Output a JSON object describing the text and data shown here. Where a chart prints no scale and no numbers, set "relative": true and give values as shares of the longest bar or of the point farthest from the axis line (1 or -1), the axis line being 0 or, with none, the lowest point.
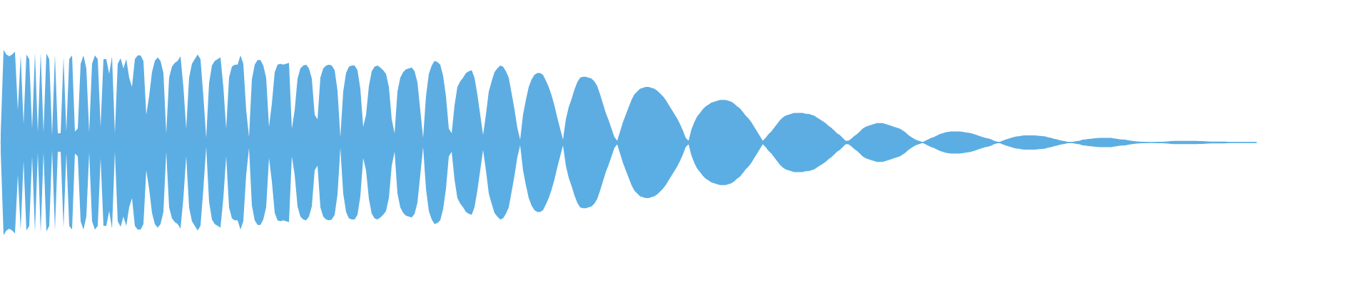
{
  "chart_data": {
    "type": "area",
    "relative": true,
    "tick_labels": false,
    "ref_lines": [
      {
        "axis": "y",
        "value": 0,
        "color": "#5dade2"
      }
    ],
    "categories": [
      null,
      null,
      null,
      null,
      null,
      null,
      null,
      null,
      null,
      null,
      null,
      null,
      null,
      null,
      null,
      null,
      null,
      null,
      null,
      null,
      null,
      null,
      null,
      null,
      null,
      null,
      null,
      null,
      null,
      null,
      null,
      null,
      null,
      null,
      null,
      null,
      null,
      null,
      null,
      null,
      null,
      null,
      null,
      null,
      null,
      null,
      null,
      null,
      null,
      null,
      null,
      null,
      null,
      null,
      null,
      null,
      null,
      null,
      null,
      null,
      null,
      null,
      null,
      null,
      null,
      null,
      null,
      null,
      null,
      null,
      null,
      null,
      null,
      null,
      null,
      null,
      null,
      null,
      null,
      null,
      null,
      null,
      null,
      null,
      null,
      null,
      null,
      null,
      null,
      null,
      null,
      null,
      null,
      null,
      null,
      null,
      null,
      null,
      null,
      null,
      null,
      null,
      null,
      null,
      null,
      null,
      null,
      null,
      null,
      null,
      null,
      null,
      null,
      null,
      null,
      null,
      null,
      null,
      null,
      null,
      null,
      null,
      null,
      null,
      null,
      null,
      null,
      null,
      null,
      null,
      null,
      null,
      null,
      null,
      null,
      null,
      null,
      null,
      null,
      null,
      null,
      null,
      null,
      null,
      null,
      null,
      null,
      null,
      null,
      null,
      null,
      null,
      null,
      null,
      null,
      null,
      null,
      null,
      null,
      null,
      null,
      null,
      null,
      null,
      null,
      null,
      null,
      null,
      null,
      null,
      null,
      null,
      null,
      null,
      null,
      null,
      null,
      null,
      null,
      null,
      null,
      null,
      null,
      null,
      null,
      null,
      null,
      null,
      null,
      null,
      null,
      null,
      null,
      null,
      null,
      null,
      null,
      null,
      null,
      null,
      null,
      null,
      null,
      null,
      null,
      null,
      null,
      null,
      null,
      null,
      null,
      null,
      null,
      null,
      null,
      null,
      null,
      null,
      null,
      null,
      null,
      null,
      null,
      null,
      null,
      null,
      null,
      null,
      null,
      null,
      null,
      null,
      null,
      null,
      null,
      null,
      null,
      null,
      null,
      null,
      null,
      null,
      null,
      null,
      null,
      null,
      null,
      null,
      null,
      null,
      null,
      null,
      null,
      null,
      null,
      null,
      null,
      null,
      null,
      null,
      null,
      null,
      null,
      null,
      null,
      null,
      null,
      null,
      null,
      null,
      null,
      null,
      null,
      null,
      null,
      null,
      null,
      null,
      null,
      null,
      null,
      null,
      null,
      null,
      null,
      null,
      null,
      null,
      null,
      null,
      null,
      null,
      null,
      null,
      null,
      null,
      null,
      null,
      null,
      null,
      null,
      null,
      null,
      null,
      null,
      null,
      null,
      null,
      null,
      null,
      null,
      null,
      null,
      null,
      null,
      null,
      null,
      null,
      null,
      null,
      null,
      null,
      null,
      null,
      null,
      null,
      null,
      null,
      null,
      null,
      null,
      null,
      null,
      null,
      null,
      null,
      null,
      null,
      null,
      null,
      null,
      null,
      null,
      null,
      null,
      null,
      null,
      null,
      null,
      null,
      null,
      null,
      null,
      null,
      null,
      null,
      null,
      null,
      null,
      null,
      null,
      null,
      null,
      null,
      null,
      null,
      null,
      null,
      null,
      null,
      null,
      null,
      null,
      null,
      null,
      null,
      null,
      null,
      null,
      null,
      null,
      null,
      null,
      null,
      null,
      null,
      null,
      null,
      null,
      null,
      null,
      null,
      null,
      null,
      null,
      null,
      null,
      null,
      null,
      null,
      null,
      null,
      null,
      null,
      null,
      null,
      null,
      null,
      null,
      null,
      null,
      null,
      null,
      null,
      null,
      null,
      null,
      null,
      null,
      null,
      null,
      null,
      null,
      null,
      null,
      null,
      null,
      null,
      null,
      null,
      null,
      null,
      null,
      null,
      null,
      null,
      null,
      null,
      null,
      null,
      null
    ],
    "series": [
      {
        "color": "#5dade2",
        "values": [
          0.1,
          1.0,
          0.95,
          0.93,
          0.95,
          0.98,
          0.35,
          0.94,
          0.2,
          0.95,
          0.9,
          0.15,
          0.97,
          0.11,
          0.97,
          0.11,
          0.96,
          0.9,
          0.08,
          0.95,
          0.1,
          0.1,
          0.92,
          0.12,
          0.9,
          0.94,
          0.12,
          0.15,
          0.85,
          0.94,
          0.8,
          0.11,
          0.85,
          0.94,
          0.9,
          0.17,
          0.9,
          0.9,
          0.74,
          0.93,
          0.1,
          0.85,
          0.91,
          0.8,
          0.9,
          0.7,
          0.6,
          0.9,
          0.94,
          0.94,
          0.88,
          0.3,
          0.5,
          0.76,
          0.88,
          0.92,
          0.88,
          0.75,
          0.1,
          0.7,
          0.82,
          0.86,
          0.88,
          0.93,
          0.6,
          0.15,
          0.7,
          0.85,
          0.9,
          0.95,
          0.9,
          0.5,
          0.05,
          0.64,
          0.83,
          0.88,
          0.9,
          0.92,
          0.6,
          0.15,
          0.7,
          0.82,
          0.84,
          0.84,
          0.94,
          0.85,
          0.35,
          0.06,
          0.68,
          0.84,
          0.89,
          0.89,
          0.83,
          0.7,
          0.17,
          0.42,
          0.76,
          0.84,
          0.85,
          0.84,
          0.85,
          0.86,
          0.15,
          0.35,
          0.69,
          0.8,
          0.83,
          0.84,
          0.8,
          0.69,
          0.3,
          0.25,
          0.7,
          0.8,
          0.83,
          0.84,
          0.83,
          0.78,
          0.56,
          0.06,
          0.55,
          0.75,
          0.82,
          0.83,
          0.83,
          0.78,
          0.58,
          0.17,
          0.3,
          0.61,
          0.77,
          0.82,
          0.83,
          0.81,
          0.78,
          0.74,
          0.6,
          0.25,
          0.1,
          0.55,
          0.7,
          0.76,
          0.79,
          0.8,
          0.81,
          0.77,
          0.65,
          0.35,
          0.05,
          0.5,
          0.74,
          0.83,
          0.88,
          0.87,
          0.84,
          0.72,
          0.5,
          0.15,
          0.1,
          0.4,
          0.6,
          0.66,
          0.7,
          0.75,
          0.77,
          0.78,
          0.7,
          0.52,
          0.3,
          0.08,
          0.3,
          0.55,
          0.66,
          0.76,
          0.8,
          0.83,
          0.82,
          0.77,
          0.7,
          0.53,
          0.36,
          0.16,
          0.03,
          0.3,
          0.46,
          0.6,
          0.68,
          0.73,
          0.75,
          0.75,
          0.73,
          0.67,
          0.6,
          0.51,
          0.4,
          0.27,
          0.15,
          0.03,
          0.25,
          0.38,
          0.47,
          0.57,
          0.65,
          0.7,
          0.71,
          0.71,
          0.7,
          0.69,
          0.66,
          0.61,
          0.52,
          0.42,
          0.32,
          0.24,
          0.15,
          0.06,
          0.02,
          0.12,
          0.22,
          0.3,
          0.38,
          0.46,
          0.52,
          0.55,
          0.58,
          0.59,
          0.6,
          0.6,
          0.59,
          0.58,
          0.56,
          0.53,
          0.5,
          0.46,
          0.41,
          0.36,
          0.31,
          0.26,
          0.2,
          0.13,
          0.05,
          0.02,
          0.14,
          0.22,
          0.28,
          0.32,
          0.36,
          0.39,
          0.41,
          0.43,
          0.44,
          0.45,
          0.46,
          0.46,
          0.46,
          0.45,
          0.44,
          0.42,
          0.39,
          0.37,
          0.33,
          0.29,
          0.26,
          0.22,
          0.17,
          0.12,
          0.07,
          0.02,
          0.05,
          0.09,
          0.12,
          0.16,
          0.2,
          0.24,
          0.27,
          0.29,
          0.3,
          0.31,
          0.32,
          0.32,
          0.32,
          0.32,
          0.31,
          0.31,
          0.3,
          0.29,
          0.27,
          0.25,
          0.23,
          0.21,
          0.18,
          0.16,
          0.13,
          0.1,
          0.08,
          0.05,
          0.02,
          0.02,
          0.04,
          0.07,
          0.09,
          0.12,
          0.15,
          0.17,
          0.18,
          0.19,
          0.2,
          0.21,
          0.21,
          0.21,
          0.2,
          0.19,
          0.18,
          0.17,
          0.16,
          0.15,
          0.13,
          0.11,
          0.08,
          0.06,
          0.04,
          0.025,
          0.015,
          0.004,
          0.02,
          0.035,
          0.05,
          0.06,
          0.075,
          0.09,
          0.1,
          0.11,
          0.115,
          0.12,
          0.12,
          0.12,
          0.12,
          0.115,
          0.11,
          0.105,
          0.1,
          0.09,
          0.08,
          0.07,
          0.06,
          0.05,
          0.045,
          0.035,
          0.02,
          0.01,
          0.005,
          0.02,
          0.03,
          0.04,
          0.05,
          0.06,
          0.065,
          0.07,
          0.075,
          0.077,
          0.077,
          0.077,
          0.077,
          0.075,
          0.072,
          0.07,
          0.065,
          0.055,
          0.05,
          0.04,
          0.035,
          0.025,
          0.02,
          0.013,
          0.005,
          0.004,
          0.01,
          0.015,
          0.02,
          0.03,
          0.033,
          0.038,
          0.04,
          0.045,
          0.048,
          0.05,
          0.05,
          0.05,
          0.05,
          0.05,
          0.045,
          0.04,
          0.035,
          0.033,
          0.03,
          0.025,
          0.02,
          0.015,
          0.012,
          0.01,
          0.007,
          0.005,
          0.004,
          0,
          0.004,
          0.005,
          0.007,
          0.008,
          0.01,
          0.012,
          0.015,
          0.018,
          0.018,
          0.018,
          0.018,
          0.018,
          0.018,
          0.018,
          0.018,
          0.018,
          0.016,
          0.015,
          0.013,
          0.012,
          0.01,
          0.01,
          0.01,
          0.01,
          0.01,
          0.01,
          0.005,
          0.004,
          0.004,
          0.004,
          0.004,
          0.004,
          0.004,
          0.004,
          0.004,
          0.004,
          0.004
        ]
      },
      {
        "color": "#5baee3",
        "values": [
          -0.1,
          -1.0,
          -0.95,
          -0.93,
          -0.95,
          -0.98,
          -0.35,
          -0.94,
          -0.2,
          -0.95,
          -0.9,
          -0.15,
          -0.97,
          -0.11,
          -0.97,
          -0.11,
          -0.96,
          -0.9,
          -0.08,
          -0.95,
          -0.1,
          -0.1,
          -0.92,
          -0.12,
          -0.9,
          -0.94,
          -0.12,
          -0.15,
          -0.85,
          -0.94,
          -0.8,
          -0.11,
          -0.85,
          -0.94,
          -0.9,
          -0.17,
          -0.9,
          -0.9,
          -0.74,
          -0.93,
          -0.1,
          -0.85,
          -0.91,
          -0.8,
          -0.9,
          -0.7,
          -0.6,
          -0.9,
          -0.94,
          -0.94,
          -0.88,
          -0.3,
          -0.5,
          -0.76,
          -0.88,
          -0.92,
          -0.88,
          -0.75,
          -0.1,
          -0.7,
          -0.82,
          -0.86,
          -0.88,
          -0.93,
          -0.6,
          -0.15,
          -0.7,
          -0.85,
          -0.9,
          -0.95,
          -0.9,
          -0.5,
          -0.05,
          -0.64,
          -0.83,
          -0.88,
          -0.9,
          -0.92,
          -0.6,
          -0.15,
          -0.7,
          -0.82,
          -0.84,
          -0.84,
          -0.94,
          -0.85,
          -0.35,
          -0.06,
          -0.68,
          -0.84,
          -0.89,
          -0.89,
          -0.83,
          -0.7,
          -0.17,
          -0.42,
          -0.76,
          -0.84,
          -0.85,
          -0.84,
          -0.85,
          -0.86,
          -0.15,
          -0.35,
          -0.69,
          -0.8,
          -0.83,
          -0.84,
          -0.8,
          -0.69,
          -0.3,
          -0.25,
          -0.7,
          -0.8,
          -0.83,
          -0.84,
          -0.83,
          -0.78,
          -0.56,
          -0.06,
          -0.55,
          -0.75,
          -0.82,
          -0.83,
          -0.83,
          -0.78,
          -0.58,
          -0.17,
          -0.3,
          -0.61,
          -0.77,
          -0.82,
          -0.83,
          -0.81,
          -0.78,
          -0.74,
          -0.6,
          -0.25,
          -0.1,
          -0.55,
          -0.7,
          -0.76,
          -0.79,
          -0.8,
          -0.81,
          -0.77,
          -0.65,
          -0.35,
          -0.05,
          -0.5,
          -0.74,
          -0.83,
          -0.88,
          -0.87,
          -0.84,
          -0.72,
          -0.5,
          -0.15,
          -0.1,
          -0.4,
          -0.6,
          -0.66,
          -0.7,
          -0.75,
          -0.77,
          -0.78,
          -0.7,
          -0.52,
          -0.3,
          -0.08,
          -0.3,
          -0.55,
          -0.66,
          -0.76,
          -0.8,
          -0.83,
          -0.82,
          -0.77,
          -0.7,
          -0.53,
          -0.36,
          -0.16,
          -0.03,
          -0.3,
          -0.46,
          -0.6,
          -0.68,
          -0.73,
          -0.75,
          -0.75,
          -0.73,
          -0.67,
          -0.6,
          -0.51,
          -0.4,
          -0.27,
          -0.15,
          -0.03,
          -0.25,
          -0.38,
          -0.47,
          -0.57,
          -0.65,
          -0.7,
          -0.71,
          -0.71,
          -0.7,
          -0.69,
          -0.66,
          -0.61,
          -0.52,
          -0.42,
          -0.32,
          -0.24,
          -0.15,
          -0.06,
          -0.02,
          -0.12,
          -0.22,
          -0.3,
          -0.38,
          -0.46,
          -0.52,
          -0.55,
          -0.58,
          -0.59,
          -0.6,
          -0.6,
          -0.59,
          -0.58,
          -0.56,
          -0.53,
          -0.5,
          -0.46,
          -0.41,
          -0.36,
          -0.31,
          -0.26,
          -0.2,
          -0.13,
          -0.05,
          -0.02,
          -0.14,
          -0.22,
          -0.28,
          -0.32,
          -0.36,
          -0.39,
          -0.41,
          -0.43,
          -0.44,
          -0.45,
          -0.46,
          -0.46,
          -0.46,
          -0.45,
          -0.44,
          -0.42,
          -0.39,
          -0.37,
          -0.33,
          -0.29,
          -0.26,
          -0.22,
          -0.17,
          -0.12,
          -0.07,
          -0.02,
          -0.05,
          -0.09,
          -0.12,
          -0.16,
          -0.2,
          -0.24,
          -0.27,
          -0.29,
          -0.3,
          -0.31,
          -0.32,
          -0.32,
          -0.32,
          -0.32,
          -0.31,
          -0.31,
          -0.3,
          -0.29,
          -0.27,
          -0.25,
          -0.23,
          -0.21,
          -0.18,
          -0.16,
          -0.13,
          -0.1,
          -0.08,
          -0.05,
          -0.02,
          -0.02,
          -0.04,
          -0.07,
          -0.09,
          -0.12,
          -0.15,
          -0.17,
          -0.18,
          -0.19,
          -0.2,
          -0.21,
          -0.21,
          -0.21,
          -0.2,
          -0.19,
          -0.18,
          -0.17,
          -0.16,
          -0.15,
          -0.13,
          -0.11,
          -0.08,
          -0.06,
          -0.04,
          -0.025,
          -0.015,
          -0.004,
          -0.02,
          -0.035,
          -0.05,
          -0.06,
          -0.075,
          -0.09,
          -0.1,
          -0.11,
          -0.115,
          -0.12,
          -0.12,
          -0.12,
          -0.12,
          -0.115,
          -0.11,
          -0.105,
          -0.1,
          -0.09,
          -0.08,
          -0.07,
          -0.06,
          -0.05,
          -0.045,
          -0.035,
          -0.02,
          -0.01,
          -0.005,
          -0.02,
          -0.03,
          -0.04,
          -0.05,
          -0.06,
          -0.065,
          -0.07,
          -0.075,
          -0.077,
          -0.077,
          -0.077,
          -0.077,
          -0.075,
          -0.072,
          -0.07,
          -0.065,
          -0.055,
          -0.05,
          -0.04,
          -0.035,
          -0.025,
          -0.02,
          -0.013,
          -0.005,
          -0.004,
          -0.01,
          -0.015,
          -0.02,
          -0.03,
          -0.033,
          -0.038,
          -0.04,
          -0.045,
          -0.048,
          -0.05,
          -0.05,
          -0.05,
          -0.05,
          -0.05,
          -0.045,
          -0.04,
          -0.035,
          -0.033,
          -0.03,
          -0.025,
          -0.02,
          -0.015,
          -0.012,
          -0.01,
          -0.007,
          -0.005,
          -0.004,
          0,
          -0.004,
          -0.005,
          -0.007,
          -0.008,
          -0.01,
          -0.012,
          -0.015,
          -0.018,
          -0.018,
          -0.018,
          -0.018,
          -0.018,
          -0.018,
          -0.018,
          -0.018,
          -0.018,
          -0.016,
          -0.015,
          -0.013,
          -0.012,
          -0.01,
          -0.01,
          -0.01,
          -0.01,
          -0.01,
          -0.01,
          -0.005,
          -0.004,
          -0.004,
          -0.004,
          -0.004,
          -0.004,
          -0.004,
          -0.004,
          -0.004,
          -0.004,
          -0.004
        ]
      }
    ]
  }
}
